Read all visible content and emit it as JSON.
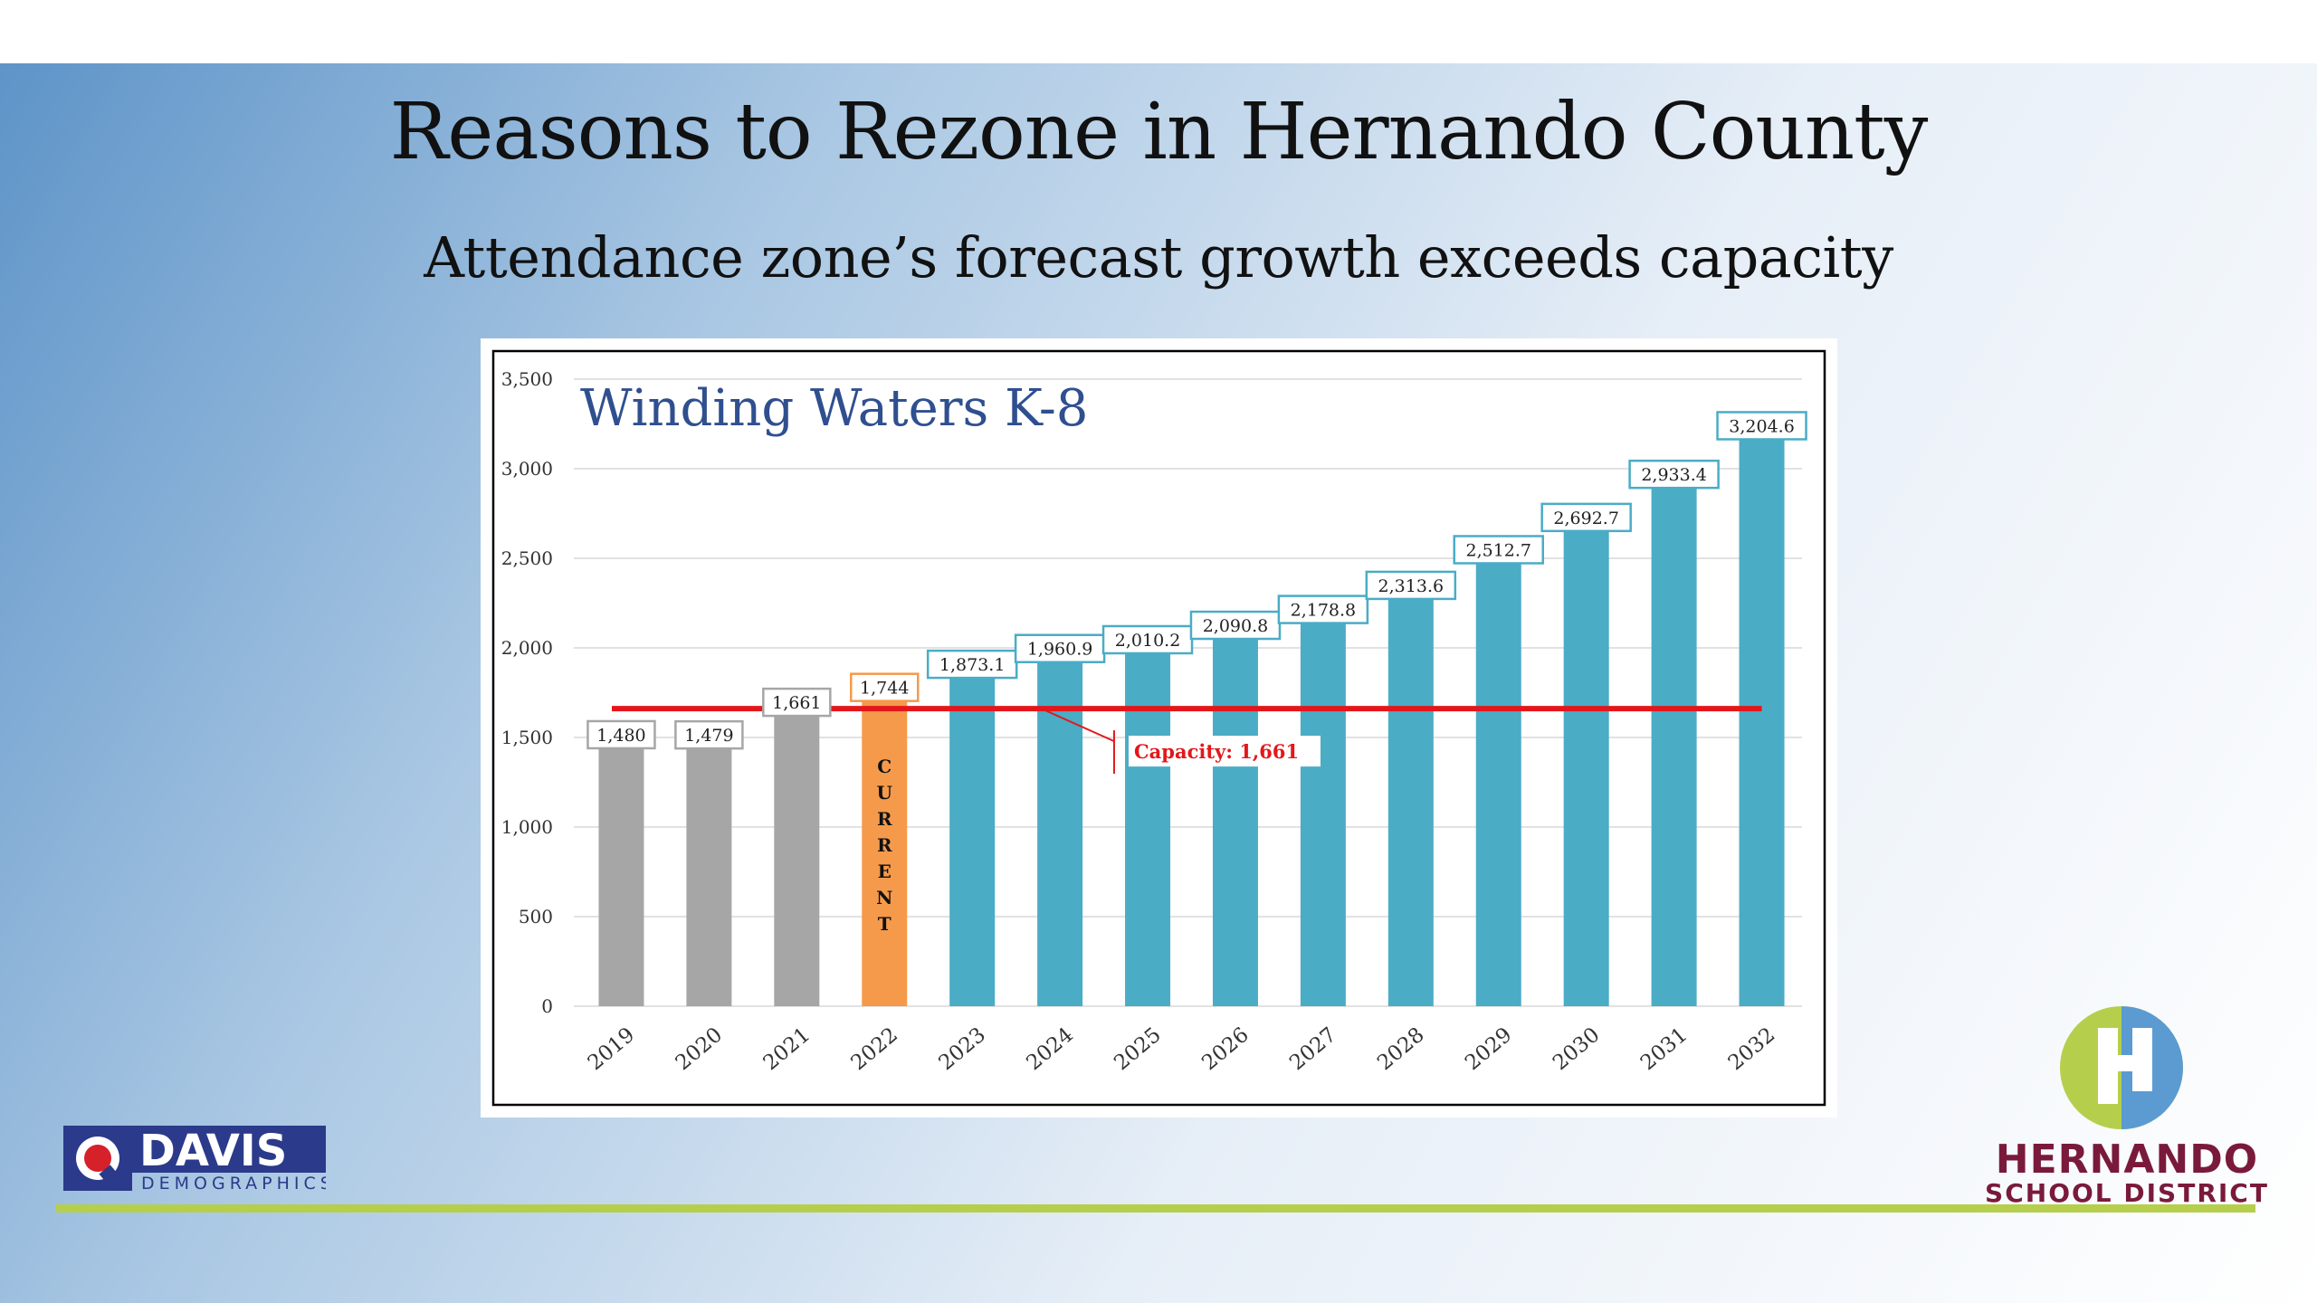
{
  "slide": {
    "title": "Reasons to Rezone in Hernando County",
    "subtitle": "Attendance zone’s forecast growth exceeds capacity"
  },
  "logos": {
    "davis": {
      "name": "DAVIS",
      "sub": "DEMOGRAPHICS"
    },
    "hernando": {
      "line1": "HERNANDO",
      "line2": "SCHOOL DISTRICT"
    }
  },
  "colors": {
    "historical": "#a6a6a6",
    "current": "#f59a4b",
    "forecast": "#4bacc6",
    "capacity_line": "#e3171b",
    "chart_title": "#2f4f8f",
    "accent_line": "#b5cf4c"
  },
  "chart_data": {
    "type": "bar",
    "title": "Winding Waters K-8",
    "categories": [
      "2019",
      "2020",
      "2021",
      "2022",
      "2023",
      "2024",
      "2025",
      "2026",
      "2027",
      "2028",
      "2029",
      "2030",
      "2031",
      "2032"
    ],
    "values": [
      1480,
      1479,
      1661,
      1744,
      1873.1,
      1960.9,
      2010.2,
      2090.8,
      2178.8,
      2313.6,
      2512.7,
      2692.7,
      2933.4,
      3204.6
    ],
    "value_labels": [
      "1,480",
      "1,479",
      "1,661",
      "1,744",
      "1,873.1",
      "1,960.9",
      "2,010.2",
      "2,090.8",
      "2,178.8",
      "2,313.6",
      "2,512.7",
      "2,692.7",
      "2,933.4",
      "3,204.6"
    ],
    "bar_group": [
      "historical",
      "historical",
      "historical",
      "current",
      "forecast",
      "forecast",
      "forecast",
      "forecast",
      "forecast",
      "forecast",
      "forecast",
      "forecast",
      "forecast",
      "forecast"
    ],
    "current_label": "CURRENT",
    "capacity": 1661,
    "capacity_label": "Capacity: 1,661",
    "ylim": [
      0,
      3500
    ],
    "yticks": [
      0,
      500,
      1000,
      1500,
      2000,
      2500,
      3000,
      3500
    ],
    "ytick_labels": [
      "0",
      "500",
      "1,000",
      "1,500",
      "2,000",
      "2,500",
      "3,000",
      "3,500"
    ],
    "grid": true,
    "legend": "none"
  }
}
